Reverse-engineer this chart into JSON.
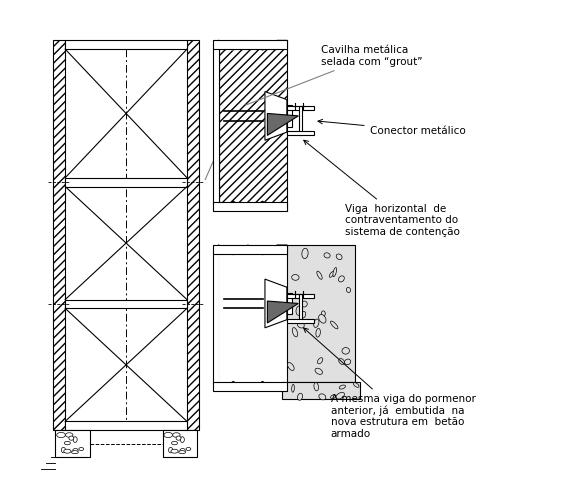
{
  "bg_color": "#ffffff",
  "line_color": "#000000",
  "text_color": "#000000",
  "ann1_text": "Cavilha metálica\nselada com “grout”",
  "ann2_text": "Conector metálico",
  "ann3_text": "Viga  horizontal  de\ncontraventamento do\nsistema de contenção",
  "ann4_text": "A mesma viga do pormenor\nanterior, já  embutida  na\nnova estrutura em  betão\narmado"
}
